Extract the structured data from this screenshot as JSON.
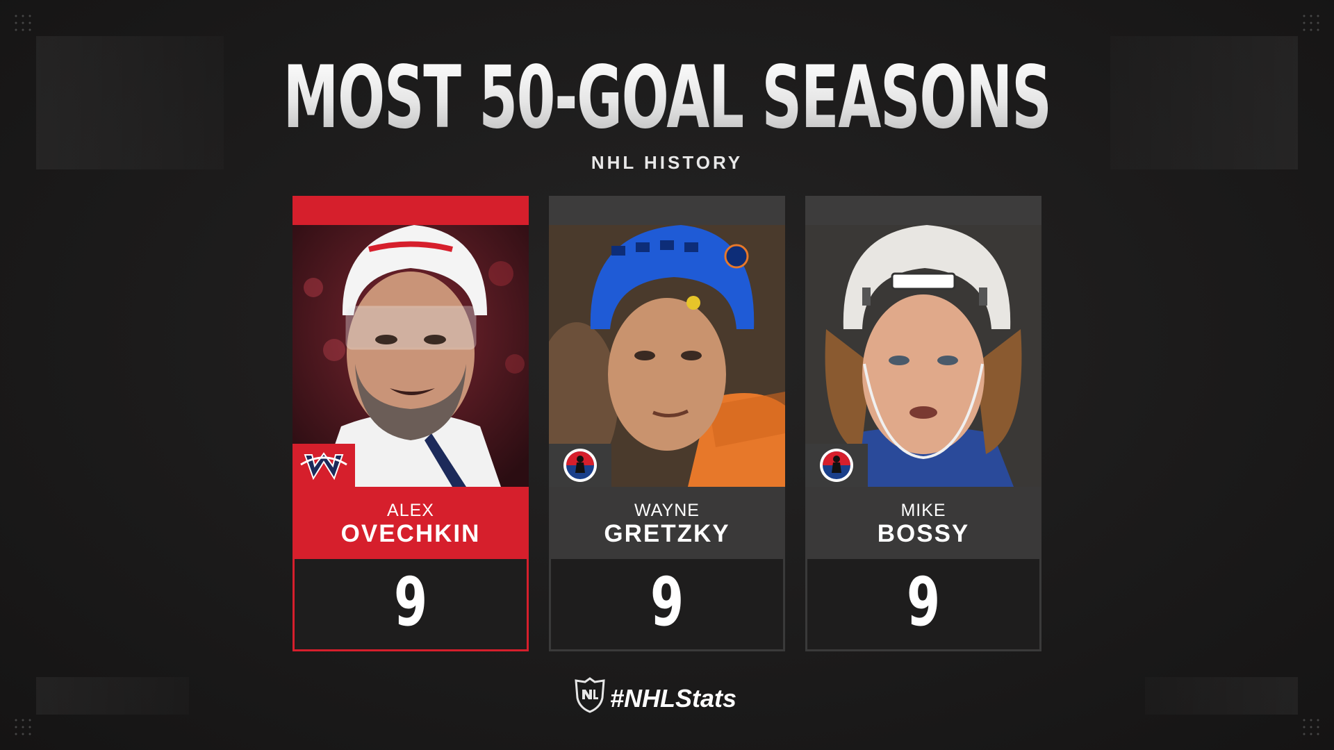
{
  "title": "MOST 50-GOAL SEASONS",
  "subtitle": "NHL HISTORY",
  "players": [
    {
      "first": "ALEX",
      "last": "OVECHKIN",
      "value": "9",
      "badge": "washington-capitals-logo-icon",
      "accent": "#d61f2c"
    },
    {
      "first": "WAYNE",
      "last": "GRETZKY",
      "value": "9",
      "badge": "hall-of-fame-icon",
      "accent": "#3a3939"
    },
    {
      "first": "MIKE",
      "last": "BOSSY",
      "value": "9",
      "badge": "hall-of-fame-icon",
      "accent": "#3a3939"
    }
  ],
  "footer": {
    "hashtag": "#NHLStats",
    "logo": "nhl-shield-icon"
  },
  "colors": {
    "background": "#1c1b1b",
    "highlight": "#d61f2c",
    "card_gray": "#3a3939"
  }
}
